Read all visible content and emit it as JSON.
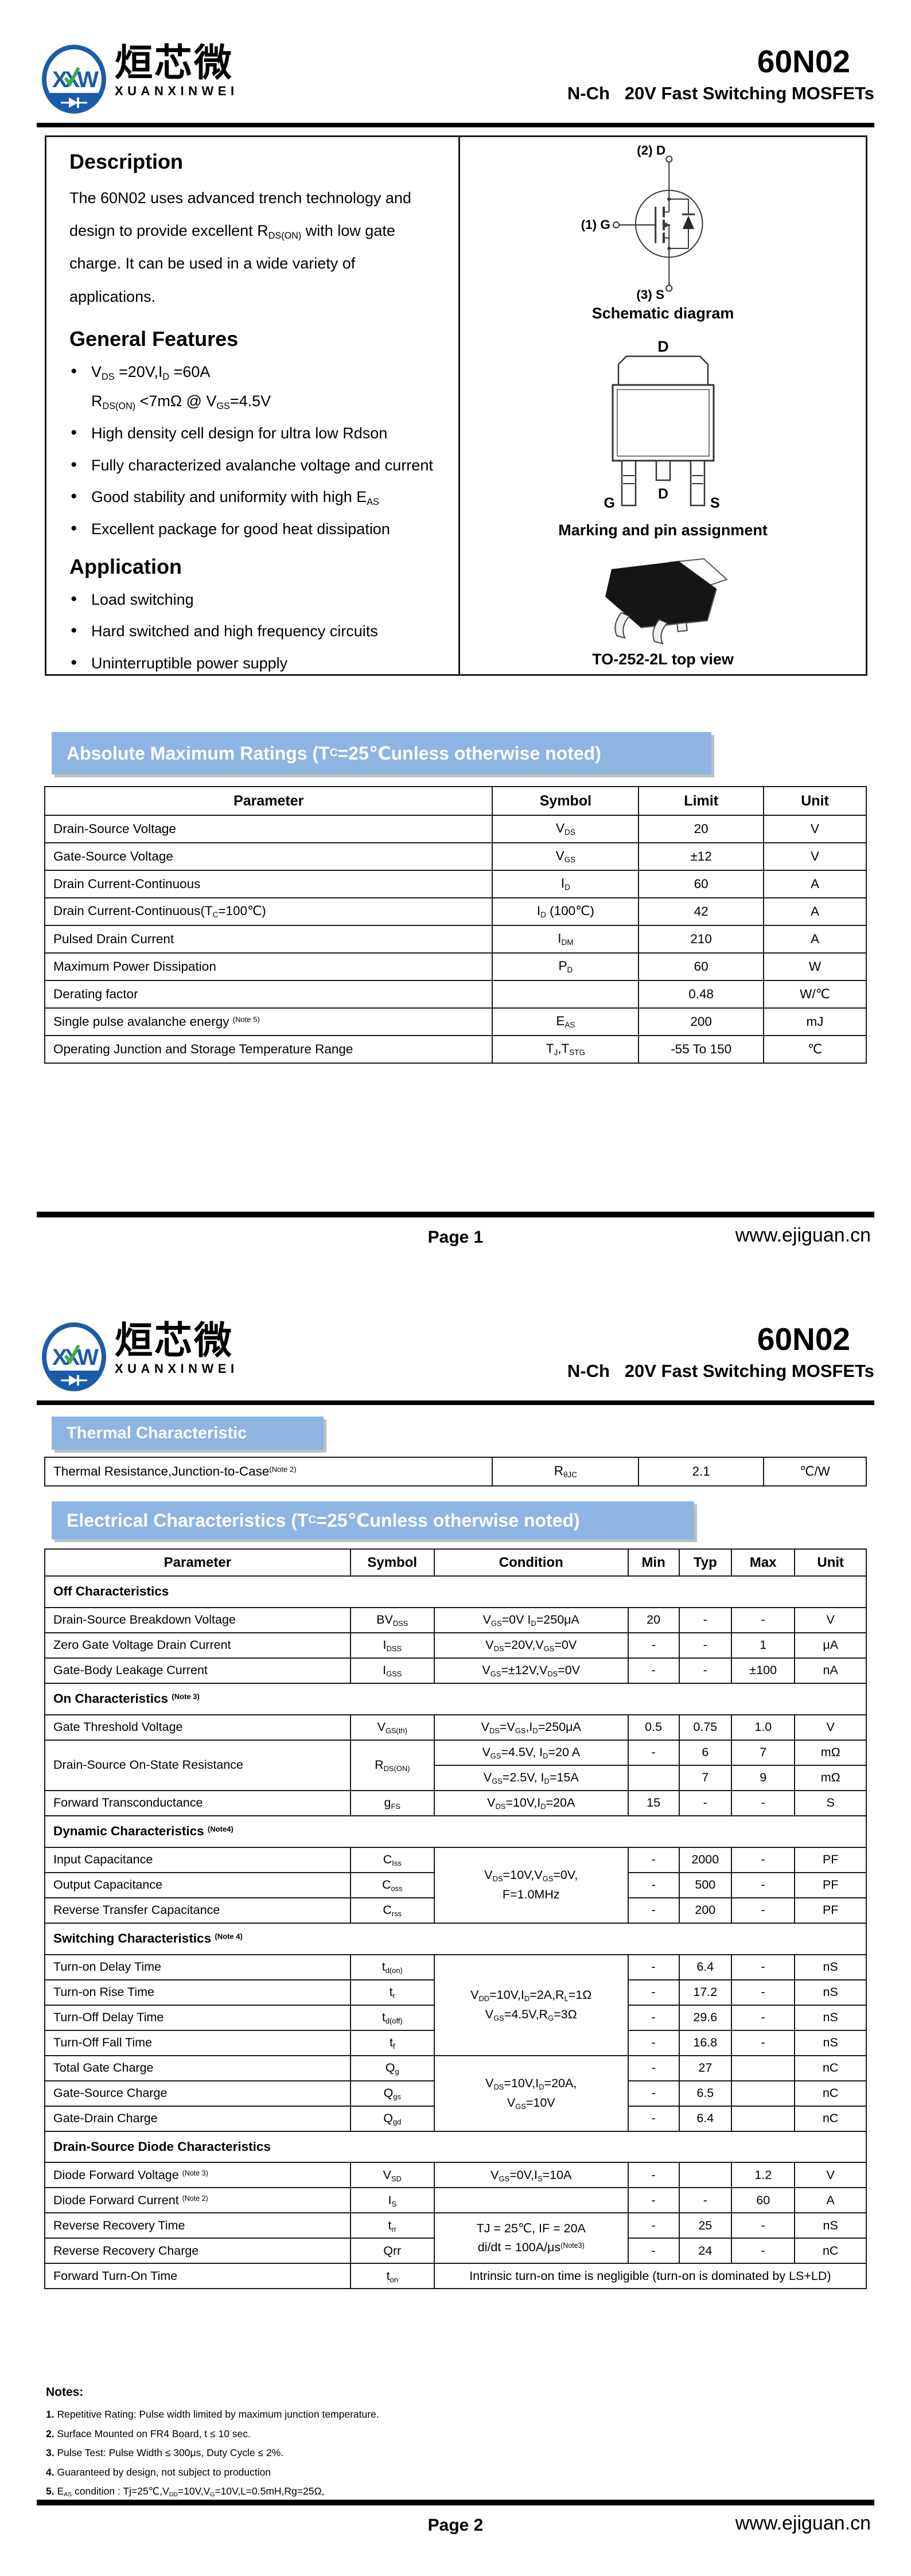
{
  "colors": {
    "band_blue": "#8EB4E3",
    "logo_blue": "#1A5CA8",
    "logo_green": "#43AD4B",
    "rule_black": "#000000"
  },
  "brand": {
    "logo_monogram": "XXW",
    "name_cn": "烜芯微",
    "name_en": "XUANXINWEI",
    "part": "60N02",
    "subtitle": "N-Ch   20V Fast Switching MOSFETs"
  },
  "page1": {
    "description": {
      "title": "Description",
      "body": "The 60N02 uses advanced trench technology and design to provide excellent R~DS(ON)~ with low gate charge. It can be used in a wide variety of applications."
    },
    "features": {
      "title": "General Features",
      "items": [
        [
          "V~DS~ =20V,I~D~ =60A",
          "R~DS(ON)~ <7mΩ @ V~GS~=4.5V"
        ],
        [
          "High density cell design for ultra low Rdson"
        ],
        [
          "Fully characterized avalanche voltage and current"
        ],
        [
          "Good stability and uniformity with high E~AS~"
        ],
        [
          "Excellent package for good heat dissipation"
        ]
      ]
    },
    "application": {
      "title": "Application",
      "items": [
        [
          "Load switching"
        ],
        [
          "Hard switched and high frequency circuits"
        ],
        [
          "Uninterruptible power supply"
        ]
      ]
    },
    "schematic": {
      "caption": "Schematic diagram",
      "pin_d": "(2) D",
      "pin_g": "(1) G",
      "pin_s": "(3) S"
    },
    "marking": {
      "caption": "Marking and pin assignment",
      "tab_label": "D",
      "pin_g": "G",
      "pin_d": "D",
      "pin_s": "S"
    },
    "package3d": {
      "caption": "TO-252-2L top view"
    },
    "abs_max": {
      "title": "Absolute Maximum Ratings (T~C~=25℃unless otherwise noted)",
      "headers": [
        "Parameter",
        "Symbol",
        "Limit",
        "Unit"
      ],
      "rows": [
        [
          {
            "t": "Drain-Source Voltage",
            "cls": "p"
          },
          "V~DS~",
          "20",
          "V"
        ],
        [
          {
            "t": "Gate-Source Voltage",
            "cls": "p"
          },
          "V~GS~",
          "±12",
          "V"
        ],
        [
          {
            "t": "Drain Current-Continuous",
            "cls": "p"
          },
          "I~D~",
          "60",
          "A"
        ],
        [
          {
            "t": "Drain Current-Continuous(T~C~=100℃)",
            "cls": "p"
          },
          "I~D~ (100℃)",
          "42",
          "A"
        ],
        [
          {
            "t": "Pulsed Drain Current",
            "cls": "p"
          },
          "I~DM~",
          "210",
          "A"
        ],
        [
          {
            "t": "Maximum Power Dissipation",
            "cls": "p"
          },
          "P~D~",
          "60",
          "W"
        ],
        [
          {
            "t": "Derating factor",
            "cls": "p"
          },
          "",
          "0.48",
          "W/℃"
        ],
        [
          {
            "t": "Single pulse avalanche energy ^(Note 5)^",
            "cls": "p"
          },
          "E~AS~",
          "200",
          "mJ"
        ],
        [
          {
            "t": "Operating Junction and Storage Temperature Range",
            "cls": "p"
          },
          "T~J~,T~STG~",
          "-55 To 150",
          "℃"
        ]
      ]
    },
    "footer": {
      "page": "Page 1",
      "site": "www.ejiguan.cn"
    }
  },
  "page2": {
    "thermal": {
      "title": "Thermal Characteristic",
      "rows": [
        [
          {
            "t": "Thermal Resistance,Junction-to-Case^(Note 2)^",
            "cls": "p"
          },
          "R~θJC~",
          "2.1",
          "℃/W"
        ]
      ]
    },
    "electrical": {
      "title": "Electrical Characteristics (T~C~=25℃unless otherwise noted)",
      "headers": [
        "Parameter",
        "Symbol",
        "Condition",
        "Min",
        "Typ",
        "Max",
        "Unit"
      ],
      "rows": [
        [
          {
            "t": "Off Characteristics",
            "cs": 7,
            "cls": "sec"
          }
        ],
        [
          {
            "t": "Drain-Source Breakdown Voltage",
            "cls": "p"
          },
          "BV~DSS~",
          "V~GS~=0V I~D~=250μA",
          "20",
          "-",
          "-",
          "V"
        ],
        [
          {
            "t": "Zero Gate Voltage Drain Current",
            "cls": "p"
          },
          "I~DSS~",
          "V~DS~=20V,V~GS~=0V",
          "-",
          "-",
          "1",
          "μA"
        ],
        [
          {
            "t": "Gate-Body Leakage Current",
            "cls": "p"
          },
          "I~GSS~",
          "V~GS~=±12V,V~DS~=0V",
          "-",
          "-",
          "±100",
          "nA"
        ],
        [
          {
            "t": "On Characteristics ^(Note 3)^",
            "cs": 7,
            "cls": "sec"
          }
        ],
        [
          {
            "t": "Gate Threshold Voltage",
            "cls": "p"
          },
          "V~GS(th)~",
          "V~DS~=V~GS~,I~D~=250μA",
          "0.5",
          "0.75",
          "1.0",
          "V"
        ],
        [
          {
            "t": "Drain-Source On-State Resistance",
            "cls": "p",
            "rs": 2
          },
          {
            "t": "R~DS(ON)~",
            "rs": 2
          },
          "V~GS~=4.5V, I~D~=20 A",
          "-",
          "6",
          "7",
          "mΩ"
        ],
        [
          "V~GS~=2.5V, I~D~=15A",
          "",
          "7",
          "9",
          "mΩ"
        ],
        [
          {
            "t": "Forward Transconductance",
            "cls": "p"
          },
          "g~FS~",
          "V~DS~=10V,I~D~=20A",
          "15",
          "-",
          "-",
          "S"
        ],
        [
          {
            "t": "Dynamic Characteristics ^(Note4)^",
            "cs": 7,
            "cls": "sec"
          }
        ],
        [
          {
            "t": "Input Capacitance",
            "cls": "p"
          },
          "C~Iss~",
          {
            "t": "V~DS~=10V,V~GS~=0V,\nF=1.0MHz",
            "rs": 3
          },
          "-",
          "2000",
          "-",
          "PF"
        ],
        [
          {
            "t": "Output Capacitance",
            "cls": "p"
          },
          "C~oss~",
          "-",
          "500",
          "-",
          "PF"
        ],
        [
          {
            "t": "Reverse Transfer Capacitance",
            "cls": "p"
          },
          "C~rss~",
          "-",
          "200",
          "-",
          "PF"
        ],
        [
          {
            "t": "Switching Characteristics ^(Note 4)^",
            "cs": 7,
            "cls": "sec"
          }
        ],
        [
          {
            "t": "Turn-on Delay Time",
            "cls": "p"
          },
          "t~d(on)~",
          {
            "t": "V~DD~=10V,I~D~=2A,R~L~=1Ω\nV~GS~=4.5V,R~G~=3Ω",
            "rs": 4
          },
          "-",
          "6.4",
          "-",
          "nS"
        ],
        [
          {
            "t": "Turn-on Rise Time",
            "cls": "p"
          },
          "t~r~",
          "-",
          "17.2",
          "-",
          "nS"
        ],
        [
          {
            "t": "Turn-Off Delay Time",
            "cls": "p"
          },
          "t~d(off)~",
          "-",
          "29.6",
          "-",
          "nS"
        ],
        [
          {
            "t": "Turn-Off Fall Time",
            "cls": "p"
          },
          "t~f~",
          "-",
          "16.8",
          "-",
          "nS"
        ],
        [
          {
            "t": "Total Gate Charge",
            "cls": "p"
          },
          "Q~g~",
          {
            "t": "V~DS~=10V,I~D~=20A,\nV~GS~=10V",
            "rs": 3
          },
          "-",
          "27",
          "",
          "nC"
        ],
        [
          {
            "t": "Gate-Source Charge",
            "cls": "p"
          },
          "Q~gs~",
          "-",
          "6.5",
          "",
          "nC"
        ],
        [
          {
            "t": "Gate-Drain Charge",
            "cls": "p"
          },
          "Q~gd~",
          "-",
          "6.4",
          "",
          "nC"
        ],
        [
          {
            "t": "Drain-Source Diode Characteristics",
            "cs": 7,
            "cls": "sec"
          }
        ],
        [
          {
            "t": "Diode Forward Voltage ^(Note 3)^",
            "cls": "p"
          },
          "V~SD~",
          "V~GS~=0V,I~S~=10A",
          "-",
          "",
          "1.2",
          "V"
        ],
        [
          {
            "t": "Diode Forward Current ^(Note 2)^",
            "cls": "p"
          },
          "I~S~",
          "",
          "-",
          "-",
          "60",
          "A"
        ],
        [
          {
            "t": "Reverse Recovery Time",
            "cls": "p"
          },
          "t~rr~",
          {
            "t": "TJ = 25℃, IF = 20A\ndi/dt = 100A/μs^(Note3)^",
            "rs": 2
          },
          "-",
          "25",
          "-",
          "nS"
        ],
        [
          {
            "t": "Reverse Recovery Charge",
            "cls": "p"
          },
          "Qrr",
          "-",
          "24",
          "-",
          "nC"
        ],
        [
          {
            "t": "Forward Turn-On Time",
            "cls": "p"
          },
          "t~on~",
          {
            "t": "Intrinsic turn-on time is negligible (turn-on is dominated by LS+LD)",
            "cs": 5
          }
        ]
      ]
    },
    "notes": {
      "title": "Notes:",
      "items": [
        "*1.* Repetitive Rating: Pulse width limited by maximum junction temperature.",
        "*2.* Surface Mounted on FR4 Board, t ≤ 10 sec.",
        "*3.* Pulse Test: Pulse Width ≤ 300μs, Duty Cycle ≤ 2%.",
        "*4.* Guaranteed by design, not subject to production",
        "*5.* E~AS~ condition : Tj=25℃,V~DD~=10V,V~G~=10V,L=0.5mH,Rg=25Ω,"
      ]
    },
    "footer": {
      "page": "Page 2",
      "site": "www.ejiguan.cn"
    }
  }
}
